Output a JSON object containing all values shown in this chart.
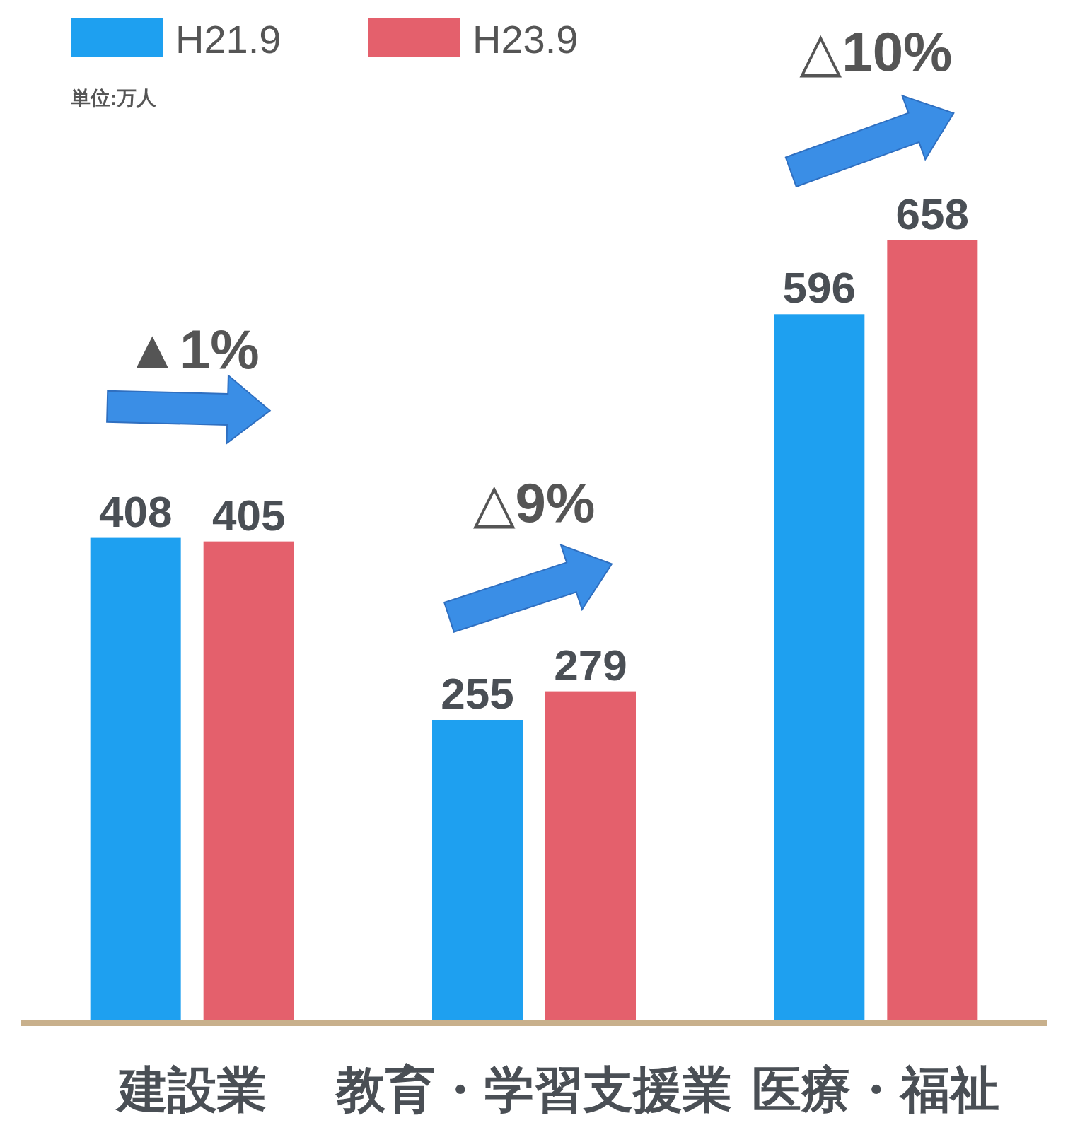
{
  "chart_data": {
    "type": "bar",
    "categories": [
      "建設業",
      "教育・学習支援業",
      "医療・福祉"
    ],
    "series": [
      {
        "name": "H21.9",
        "color": "#1ea0f0",
        "values": [
          408,
          255,
          596
        ]
      },
      {
        "name": "H23.9",
        "color": "#e4606c",
        "values": [
          405,
          279,
          658
        ]
      }
    ],
    "data_labels": true,
    "legend": "top left",
    "annotations": [
      "単位:万人",
      "▲1%",
      "△9%",
      "△10%"
    ]
  }
}
